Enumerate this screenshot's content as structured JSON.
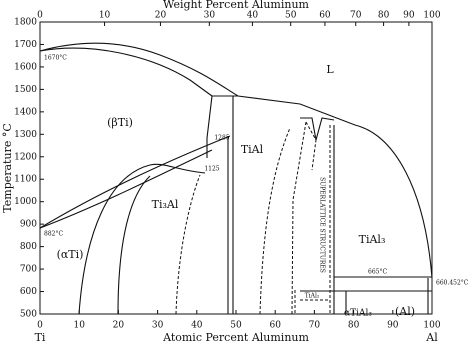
{
  "header": {
    "title": "Weight Percent Aluminum"
  },
  "axes": {
    "x_label": "Atomic Percent Aluminum",
    "y_label": "Temperature °C",
    "x_left_end": "Ti",
    "x_right_end": "Al",
    "weight_ticks": [
      0,
      10,
      20,
      30,
      40,
      50,
      60,
      70,
      80,
      90,
      100
    ],
    "atomic_ticks": [
      0,
      10,
      20,
      30,
      40,
      50,
      60,
      70,
      80,
      90,
      100
    ],
    "temp_ticks": [
      1800,
      1700,
      1600,
      1500,
      1400,
      1300,
      1200,
      1100,
      1000,
      900,
      800,
      700,
      600,
      500
    ]
  },
  "labels": {
    "liquid": "L",
    "beta": "(βTi)",
    "tial": "TiAl",
    "ti3al": "Ti₃Al",
    "alpha": "(αTi)",
    "tial3": "TiAl₃",
    "al": "(Al)",
    "alpha_tial3": "αTiAl₃",
    "tial2": "TiAl₂",
    "superlattice": "SUPERLATTICE STRUCTURES",
    "t1670": "1670°C",
    "t882": "882°C",
    "t665": "665°C",
    "t660": "660.452°C",
    "t1285": "1285",
    "t1125": "1125"
  }
}
